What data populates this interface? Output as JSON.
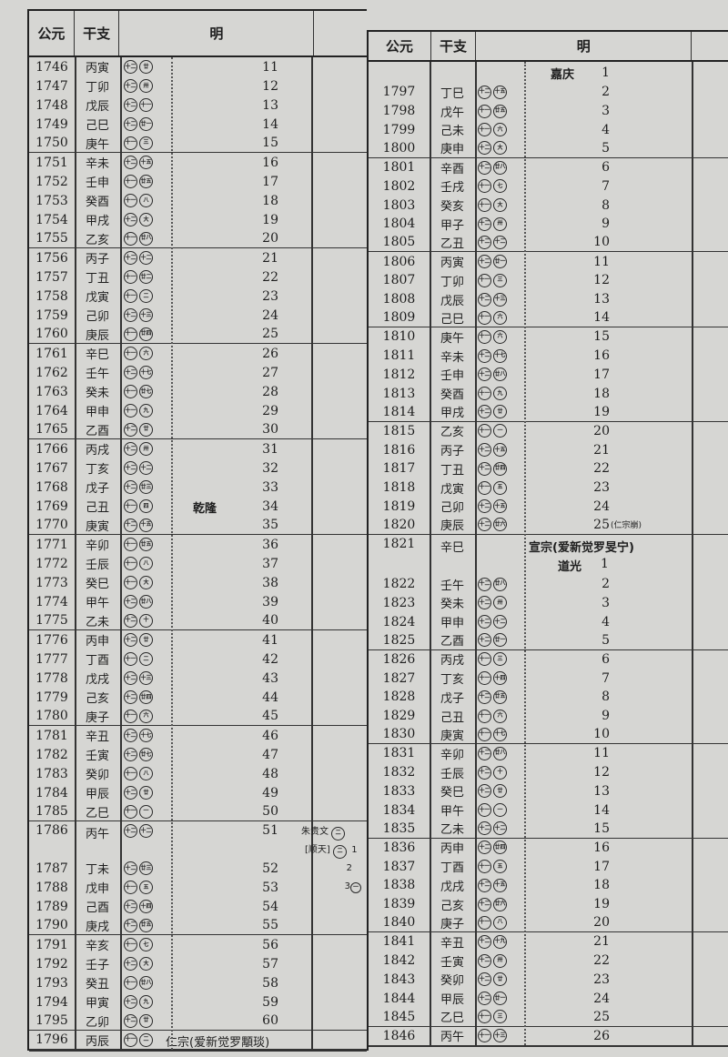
{
  "headers": {
    "year": "公元",
    "ganzhi": "干支",
    "dynasty": "明"
  },
  "left": {
    "rows": [
      {
        "year": "1746",
        "gz": "丙寅",
        "c": [
          "十二",
          "廿"
        ],
        "n": "11"
      },
      {
        "year": "1747",
        "gz": "丁卯",
        "c": [
          "十二",
          "卅"
        ],
        "n": "12"
      },
      {
        "year": "1748",
        "gz": "戊辰",
        "c": [
          "十二",
          "十一"
        ],
        "n": "13"
      },
      {
        "year": "1749",
        "gz": "己巳",
        "c": [
          "十二",
          "廿一"
        ],
        "n": "14"
      },
      {
        "year": "1750",
        "gz": "庚午",
        "c": [
          "十一",
          "三"
        ],
        "n": "15"
      },
      {
        "year": "1751",
        "gz": "辛未",
        "c": [
          "十二",
          "十五"
        ],
        "n": "16"
      },
      {
        "year": "1752",
        "gz": "壬申",
        "c": [
          "十一",
          "廿五"
        ],
        "n": "17"
      },
      {
        "year": "1753",
        "gz": "癸酉",
        "c": [
          "十一",
          "八"
        ],
        "n": "18"
      },
      {
        "year": "1754",
        "gz": "甲戌",
        "c": [
          "十二",
          "大"
        ],
        "n": "19"
      },
      {
        "year": "1755",
        "gz": "乙亥",
        "c": [
          "十一",
          "廿八"
        ],
        "n": "20"
      },
      {
        "year": "1756",
        "gz": "丙子",
        "c": [
          "十二",
          "十二"
        ],
        "n": "21"
      },
      {
        "year": "1757",
        "gz": "丁丑",
        "c": [
          "十一",
          "廿二"
        ],
        "n": "22"
      },
      {
        "year": "1758",
        "gz": "戊寅",
        "c": [
          "十一",
          "二"
        ],
        "n": "23"
      },
      {
        "year": "1759",
        "gz": "己卯",
        "c": [
          "十二",
          "十三"
        ],
        "n": "24"
      },
      {
        "year": "1760",
        "gz": "庚辰",
        "c": [
          "十一",
          "廿四"
        ],
        "n": "25"
      },
      {
        "year": "1761",
        "gz": "辛巳",
        "c": [
          "十一",
          "六"
        ],
        "n": "26"
      },
      {
        "year": "1762",
        "gz": "壬午",
        "c": [
          "十二",
          "十七"
        ],
        "n": "27"
      },
      {
        "year": "1763",
        "gz": "癸未",
        "c": [
          "十一",
          "廿七"
        ],
        "n": "28"
      },
      {
        "year": "1764",
        "gz": "甲申",
        "c": [
          "十一",
          "九"
        ],
        "n": "29"
      },
      {
        "year": "1765",
        "gz": "乙酉",
        "c": [
          "十二",
          "廿"
        ],
        "n": "30"
      },
      {
        "year": "1766",
        "gz": "丙戌",
        "c": [
          "十二",
          "卅"
        ],
        "n": "31"
      },
      {
        "year": "1767",
        "gz": "丁亥",
        "c": [
          "十二",
          "十二"
        ],
        "n": "32"
      },
      {
        "year": "1768",
        "gz": "戊子",
        "c": [
          "十二",
          "廿三"
        ],
        "n": "33"
      },
      {
        "year": "1769",
        "gz": "己丑",
        "c": [
          "十一",
          "四"
        ],
        "n": "34",
        "reign": "乾隆"
      },
      {
        "year": "1770",
        "gz": "庚寅",
        "c": [
          "十二",
          "十五"
        ],
        "n": "35"
      },
      {
        "year": "1771",
        "gz": "辛卯",
        "c": [
          "十一",
          "廿五"
        ],
        "n": "36"
      },
      {
        "year": "1772",
        "gz": "壬辰",
        "c": [
          "十一",
          "八"
        ],
        "n": "37"
      },
      {
        "year": "1773",
        "gz": "癸巳",
        "c": [
          "十一",
          "大"
        ],
        "n": "38"
      },
      {
        "year": "1774",
        "gz": "甲午",
        "c": [
          "十二",
          "廿八"
        ],
        "n": "39"
      },
      {
        "year": "1775",
        "gz": "乙未",
        "c": [
          "十二",
          "十"
        ],
        "n": "40"
      },
      {
        "year": "1776",
        "gz": "丙申",
        "c": [
          "十二",
          "廿"
        ],
        "n": "41"
      },
      {
        "year": "1777",
        "gz": "丁酉",
        "c": [
          "十一",
          "二"
        ],
        "n": "42"
      },
      {
        "year": "1778",
        "gz": "戊戌",
        "c": [
          "十二",
          "十三"
        ],
        "n": "43"
      },
      {
        "year": "1779",
        "gz": "己亥",
        "c": [
          "十二",
          "廿四"
        ],
        "n": "44"
      },
      {
        "year": "1780",
        "gz": "庚子",
        "c": [
          "十一",
          "六"
        ],
        "n": "45"
      },
      {
        "year": "1781",
        "gz": "辛丑",
        "c": [
          "十二",
          "十七"
        ],
        "n": "46"
      },
      {
        "year": "1782",
        "gz": "壬寅",
        "c": [
          "十二",
          "廿七"
        ],
        "n": "47"
      },
      {
        "year": "1783",
        "gz": "癸卯",
        "c": [
          "十一",
          "八"
        ],
        "n": "48"
      },
      {
        "year": "1784",
        "gz": "甲辰",
        "c": [
          "十二",
          "廿"
        ],
        "n": "49"
      },
      {
        "year": "1785",
        "gz": "乙巳",
        "c": [
          "十一",
          "一"
        ],
        "n": "50"
      },
      {
        "year": "1786",
        "gz": "丙午",
        "c": [
          "十二",
          "十二"
        ],
        "n": "51"
      },
      {
        "year": "1787",
        "gz": "丁未",
        "c": [
          "十二",
          "廿三"
        ],
        "n": "52"
      },
      {
        "year": "1788",
        "gz": "戊申",
        "c": [
          "十一",
          "五"
        ],
        "n": "53"
      },
      {
        "year": "1789",
        "gz": "己酉",
        "c": [
          "十二",
          "十四"
        ],
        "n": "54"
      },
      {
        "year": "1790",
        "gz": "庚戌",
        "c": [
          "十二",
          "廿五"
        ],
        "n": "55"
      },
      {
        "year": "1791",
        "gz": "辛亥",
        "c": [
          "十一",
          "七"
        ],
        "n": "56"
      },
      {
        "year": "1792",
        "gz": "壬子",
        "c": [
          "十二",
          "大"
        ],
        "n": "57"
      },
      {
        "year": "1793",
        "gz": "癸丑",
        "c": [
          "十一",
          "廿八"
        ],
        "n": "58"
      },
      {
        "year": "1794",
        "gz": "甲寅",
        "c": [
          "十二",
          "九"
        ],
        "n": "59"
      },
      {
        "year": "1795",
        "gz": "乙卯",
        "c": [
          "十二",
          "廿"
        ],
        "n": "60"
      },
      {
        "year": "1796",
        "gz": "丙辰",
        "c": [
          "十一",
          "二"
        ],
        "n": "",
        "note": "仁宗(爱新觉罗顒琰)"
      }
    ],
    "annotation": {
      "name": "朱贵文",
      "name_circle": "二",
      "title": "[顺天]",
      "title_circle": "二",
      "years": [
        "1",
        "2",
        "3"
      ],
      "last_circle": "一"
    }
  },
  "right": {
    "rows": [
      {
        "year": "",
        "gz": "",
        "c": null,
        "n": "1",
        "reign": "嘉庆"
      },
      {
        "year": "1797",
        "gz": "丁巳",
        "c": [
          "十二",
          "十五"
        ],
        "n": "2"
      },
      {
        "year": "1798",
        "gz": "戊午",
        "c": [
          "十一",
          "廿五"
        ],
        "n": "3"
      },
      {
        "year": "1799",
        "gz": "己未",
        "c": [
          "十一",
          "六"
        ],
        "n": "4"
      },
      {
        "year": "1800",
        "gz": "庚申",
        "c": [
          "十二",
          "大"
        ],
        "n": "5"
      },
      {
        "year": "1801",
        "gz": "辛酉",
        "c": [
          "十二",
          "廿八"
        ],
        "n": "6"
      },
      {
        "year": "1802",
        "gz": "壬戌",
        "c": [
          "十一",
          "七"
        ],
        "n": "7"
      },
      {
        "year": "1803",
        "gz": "癸亥",
        "c": [
          "十一",
          "大"
        ],
        "n": "8"
      },
      {
        "year": "1804",
        "gz": "甲子",
        "c": [
          "十二",
          "卅"
        ],
        "n": "9"
      },
      {
        "year": "1805",
        "gz": "乙丑",
        "c": [
          "十二",
          "十二"
        ],
        "n": "10"
      },
      {
        "year": "1806",
        "gz": "丙寅",
        "c": [
          "十二",
          "廿一"
        ],
        "n": "11"
      },
      {
        "year": "1807",
        "gz": "丁卯",
        "c": [
          "十一",
          "三"
        ],
        "n": "12"
      },
      {
        "year": "1808",
        "gz": "戊辰",
        "c": [
          "十二",
          "十三"
        ],
        "n": "13"
      },
      {
        "year": "1809",
        "gz": "己巳",
        "c": [
          "十一",
          "六"
        ],
        "n": "14"
      },
      {
        "year": "1810",
        "gz": "庚午",
        "c": [
          "十一",
          "六"
        ],
        "n": "15"
      },
      {
        "year": "1811",
        "gz": "辛未",
        "c": [
          "十二",
          "十七"
        ],
        "n": "16"
      },
      {
        "year": "1812",
        "gz": "壬申",
        "c": [
          "十二",
          "廿八"
        ],
        "n": "17"
      },
      {
        "year": "1813",
        "gz": "癸酉",
        "c": [
          "十一",
          "九"
        ],
        "n": "18"
      },
      {
        "year": "1814",
        "gz": "甲戌",
        "c": [
          "十二",
          "廿"
        ],
        "n": "19"
      },
      {
        "year": "1815",
        "gz": "乙亥",
        "c": [
          "十一",
          "一"
        ],
        "n": "20"
      },
      {
        "year": "1816",
        "gz": "丙子",
        "c": [
          "十二",
          "十五"
        ],
        "n": "21"
      },
      {
        "year": "1817",
        "gz": "丁丑",
        "c": [
          "十二",
          "廿四"
        ],
        "n": "22"
      },
      {
        "year": "1818",
        "gz": "戊寅",
        "c": [
          "十一",
          "五"
        ],
        "n": "23"
      },
      {
        "year": "1819",
        "gz": "己卯",
        "c": [
          "十二",
          "十五"
        ],
        "n": "24"
      },
      {
        "year": "1820",
        "gz": "庚辰",
        "c": [
          "十二",
          "廿六"
        ],
        "n": "25",
        "suffix": "(仁宗崩)"
      },
      {
        "year": "1821",
        "gz": "辛巳",
        "c": null,
        "n": "",
        "ruler": "宣宗(爱新觉罗旻宁)",
        "reign": "道光",
        "reign_n": "1"
      },
      {
        "year": "1822",
        "gz": "壬午",
        "c": [
          "十二",
          "廿八"
        ],
        "n": "2"
      },
      {
        "year": "1823",
        "gz": "癸未",
        "c": [
          "十二",
          "卅"
        ],
        "n": "3"
      },
      {
        "year": "1824",
        "gz": "甲申",
        "c": [
          "十二",
          "十二"
        ],
        "n": "4"
      },
      {
        "year": "1825",
        "gz": "乙酉",
        "c": [
          "十二",
          "廿一"
        ],
        "n": "5"
      },
      {
        "year": "1826",
        "gz": "丙戌",
        "c": [
          "十一",
          "三"
        ],
        "n": "6"
      },
      {
        "year": "1827",
        "gz": "丁亥",
        "c": [
          "十一",
          "十四"
        ],
        "n": "7"
      },
      {
        "year": "1828",
        "gz": "戊子",
        "c": [
          "十二",
          "廿五"
        ],
        "n": "8"
      },
      {
        "year": "1829",
        "gz": "己丑",
        "c": [
          "十一",
          "六"
        ],
        "n": "9"
      },
      {
        "year": "1830",
        "gz": "庚寅",
        "c": [
          "十一",
          "十七"
        ],
        "n": "10"
      },
      {
        "year": "1831",
        "gz": "辛卯",
        "c": [
          "十二",
          "廿八"
        ],
        "n": "11"
      },
      {
        "year": "1832",
        "gz": "壬辰",
        "c": [
          "十二",
          "十"
        ],
        "n": "12"
      },
      {
        "year": "1833",
        "gz": "癸巳",
        "c": [
          "十二",
          "廿"
        ],
        "n": "13"
      },
      {
        "year": "1834",
        "gz": "甲午",
        "c": [
          "十一",
          "一"
        ],
        "n": "14"
      },
      {
        "year": "1835",
        "gz": "乙未",
        "c": [
          "十二",
          "十二"
        ],
        "n": "15"
      },
      {
        "year": "1836",
        "gz": "丙申",
        "c": [
          "十二",
          "廿四"
        ],
        "n": "16"
      },
      {
        "year": "1837",
        "gz": "丁酉",
        "c": [
          "十一",
          "五"
        ],
        "n": "17"
      },
      {
        "year": "1838",
        "gz": "戊戌",
        "c": [
          "十二",
          "十五"
        ],
        "n": "18"
      },
      {
        "year": "1839",
        "gz": "己亥",
        "c": [
          "十二",
          "廿六"
        ],
        "n": "19"
      },
      {
        "year": "1840",
        "gz": "庚子",
        "c": [
          "十一",
          "八"
        ],
        "n": "20"
      },
      {
        "year": "1841",
        "gz": "辛丑",
        "c": [
          "十二",
          "十九"
        ],
        "n": "21"
      },
      {
        "year": "1842",
        "gz": "壬寅",
        "c": [
          "十二",
          "卅"
        ],
        "n": "22"
      },
      {
        "year": "1843",
        "gz": "癸卯",
        "c": [
          "十二",
          "廿"
        ],
        "n": "23"
      },
      {
        "year": "1844",
        "gz": "甲辰",
        "c": [
          "十二",
          "廿一"
        ],
        "n": "24"
      },
      {
        "year": "1845",
        "gz": "乙巳",
        "c": [
          "十一",
          "三"
        ],
        "n": "25"
      },
      {
        "year": "1846",
        "gz": "丙午",
        "c": [
          "十一",
          "十三"
        ],
        "n": "26"
      }
    ]
  }
}
